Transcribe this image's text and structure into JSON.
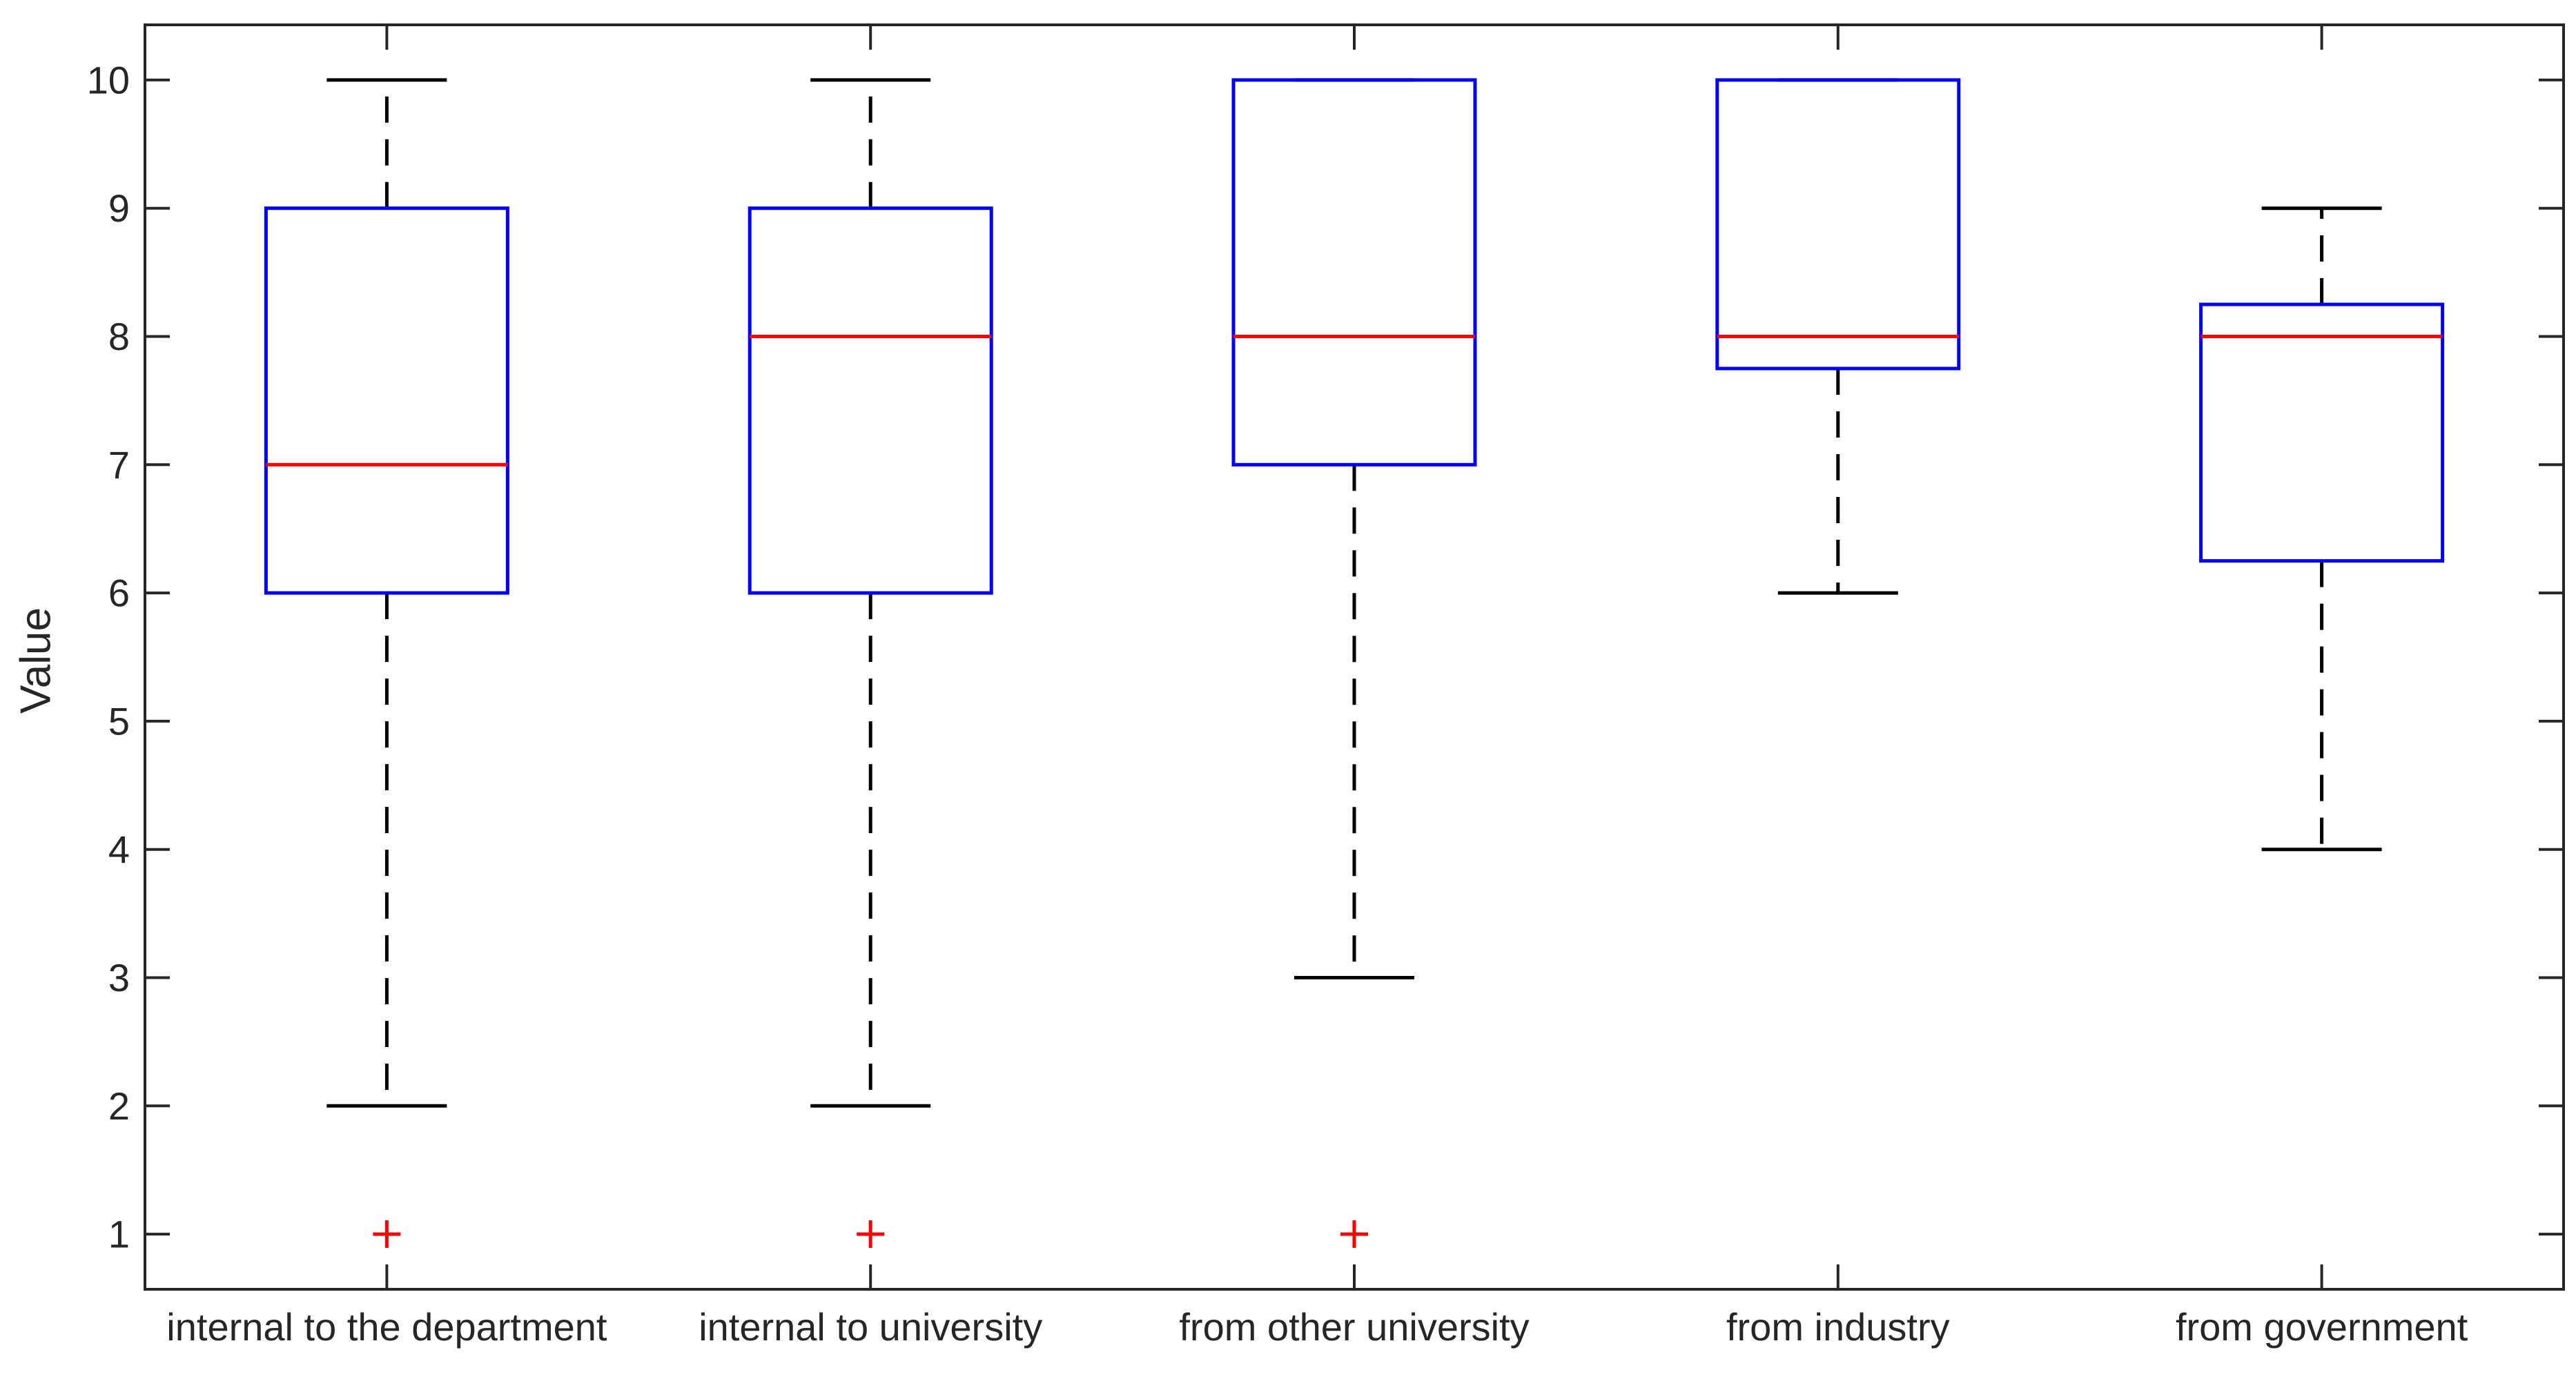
{
  "chart_data": {
    "type": "boxplot",
    "title": "",
    "xlabel": "",
    "ylabel": "Value",
    "ylim": [
      0.57,
      10.43
    ],
    "yticks": [
      1,
      2,
      3,
      4,
      5,
      6,
      7,
      8,
      9,
      10
    ],
    "grid": false,
    "categories": [
      "internal to the department",
      "internal to university",
      "from other university",
      "from industry",
      "from government"
    ],
    "boxes": [
      {
        "category": "internal to the department",
        "whisker_low": 2,
        "q1": 6,
        "median": 7,
        "q3": 9,
        "whisker_high": 10,
        "outliers": [
          1
        ]
      },
      {
        "category": "internal to university",
        "whisker_low": 2,
        "q1": 6,
        "median": 8,
        "q3": 9,
        "whisker_high": 10,
        "outliers": [
          1
        ]
      },
      {
        "category": "from other university",
        "whisker_low": 3,
        "q1": 7,
        "median": 8,
        "q3": 10,
        "whisker_high": 10,
        "outliers": [
          1
        ]
      },
      {
        "category": "from industry",
        "whisker_low": 6,
        "q1": 7.75,
        "median": 8,
        "q3": 10,
        "whisker_high": 10,
        "outliers": []
      },
      {
        "category": "from government",
        "whisker_low": 4,
        "q1": 6.25,
        "median": 8,
        "q3": 8.25,
        "whisker_high": 9,
        "outliers": []
      }
    ],
    "colors": {
      "box": "#0000ff",
      "median": "#ff0000",
      "whisker": "#000000",
      "outlier": "#ff0000",
      "axis": "#262626",
      "text": "#262626"
    }
  }
}
